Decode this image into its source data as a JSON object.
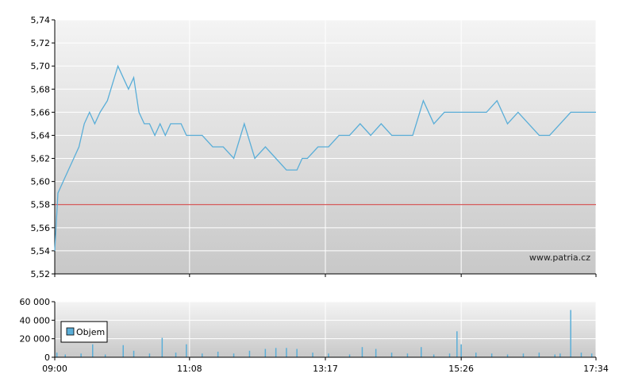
{
  "chart_data": [
    {
      "type": "line",
      "title": "",
      "xlabel": "",
      "ylabel": "",
      "ylim": [
        5.52,
        5.74
      ],
      "y_ticks": [
        "5,52",
        "5,54",
        "5,56",
        "5,58",
        "5,60",
        "5,62",
        "5,64",
        "5,66",
        "5,68",
        "5,70",
        "5,72",
        "5,74"
      ],
      "x_ticks": [
        "09:00",
        "11:08",
        "13:17",
        "15:26",
        "17:34"
      ],
      "grid": true,
      "reference_line": {
        "value": 5.58,
        "color": "#cc3333"
      },
      "watermark": "www.patria.cz",
      "series": [
        {
          "color": "#5aaed8",
          "x": [
            "09:00",
            "09:03",
            "09:08",
            "09:13",
            "09:18",
            "09:23",
            "09:28",
            "09:33",
            "09:38",
            "09:43",
            "09:50",
            "10:00",
            "10:05",
            "10:10",
            "10:15",
            "10:20",
            "10:25",
            "10:30",
            "10:35",
            "10:40",
            "10:45",
            "10:50",
            "11:00",
            "11:05",
            "11:10",
            "11:20",
            "11:30",
            "11:40",
            "11:50",
            "12:00",
            "12:10",
            "12:20",
            "12:30",
            "12:40",
            "12:50",
            "12:55",
            "13:00",
            "13:10",
            "13:20",
            "13:30",
            "13:40",
            "13:50",
            "14:00",
            "14:10",
            "14:20",
            "14:30",
            "14:40",
            "14:50",
            "15:00",
            "15:10",
            "15:20",
            "15:26",
            "15:30",
            "15:40",
            "15:50",
            "16:00",
            "16:10",
            "16:20",
            "16:30",
            "16:40",
            "16:50",
            "17:00",
            "17:10",
            "17:20",
            "17:34"
          ],
          "y": [
            5.54,
            5.59,
            5.6,
            5.61,
            5.62,
            5.63,
            5.65,
            5.66,
            5.65,
            5.66,
            5.67,
            5.7,
            5.69,
            5.68,
            5.69,
            5.66,
            5.65,
            5.65,
            5.64,
            5.65,
            5.64,
            5.65,
            5.65,
            5.64,
            5.64,
            5.64,
            5.63,
            5.63,
            5.62,
            5.65,
            5.62,
            5.63,
            5.62,
            5.61,
            5.61,
            5.62,
            5.62,
            5.63,
            5.63,
            5.64,
            5.64,
            5.65,
            5.64,
            5.65,
            5.64,
            5.64,
            5.64,
            5.67,
            5.65,
            5.66,
            5.66,
            5.66,
            5.66,
            5.66,
            5.66,
            5.67,
            5.65,
            5.66,
            5.65,
            5.64,
            5.64,
            5.65,
            5.66,
            5.66,
            5.66
          ]
        }
      ]
    },
    {
      "type": "bar",
      "title": "",
      "xlabel": "",
      "ylabel": "",
      "ylim": [
        0,
        60000
      ],
      "y_ticks": [
        "0",
        "20 000",
        "40 000",
        "60 000"
      ],
      "x_ticks": [
        "09:00",
        "11:08",
        "13:17",
        "15:26",
        "17:34"
      ],
      "grid": true,
      "legend": {
        "placement": "top-left",
        "entries": [
          "Objem"
        ]
      },
      "series": [
        {
          "name": "Objem",
          "color": "#5aaed8",
          "x": [
            "09:02",
            "09:10",
            "09:25",
            "09:36",
            "09:48",
            "10:05",
            "10:15",
            "10:30",
            "10:42",
            "10:55",
            "11:05",
            "11:20",
            "11:35",
            "11:50",
            "12:05",
            "12:20",
            "12:30",
            "12:40",
            "12:50",
            "13:05",
            "13:20",
            "13:40",
            "13:52",
            "14:05",
            "14:20",
            "14:35",
            "14:48",
            "15:00",
            "15:15",
            "15:22",
            "15:26",
            "15:40",
            "15:55",
            "16:10",
            "16:25",
            "16:40",
            "16:55",
            "17:00",
            "17:10",
            "17:20",
            "17:30"
          ],
          "values": [
            5000,
            3000,
            4000,
            14000,
            3000,
            13000,
            7000,
            4000,
            21000,
            5000,
            14000,
            4000,
            6000,
            4000,
            7000,
            9000,
            10000,
            10000,
            9000,
            5000,
            4000,
            3000,
            11000,
            9000,
            5000,
            4000,
            11000,
            3000,
            4000,
            28000,
            14000,
            5000,
            4000,
            3000,
            4000,
            5000,
            3000,
            4000,
            51000,
            5000,
            4000
          ]
        }
      ]
    }
  ]
}
